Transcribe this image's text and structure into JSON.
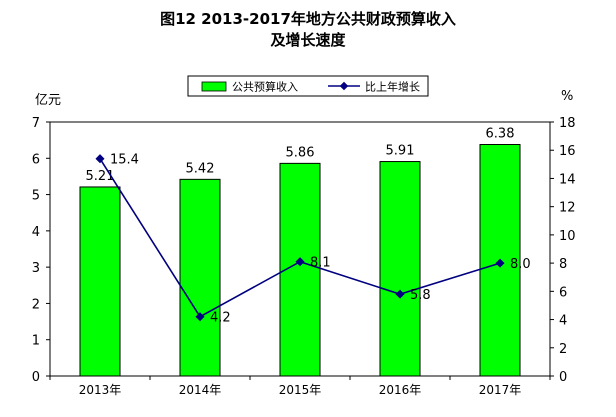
{
  "chart_data": {
    "type": "bar+line",
    "title_line1": "图12  2013-2017年地方公共财政预算收入",
    "title_line2": "及增长速度",
    "categories": [
      "2013年",
      "2014年",
      "2015年",
      "2016年",
      "2017年"
    ],
    "series": [
      {
        "name": "公共预算收入",
        "kind": "bar",
        "axis": "left",
        "color": "#00ff00",
        "values": [
          5.21,
          5.42,
          5.86,
          5.91,
          6.38
        ],
        "labels": [
          "5.21",
          "5.42",
          "5.86",
          "5.91",
          "6.38"
        ]
      },
      {
        "name": "比上年增长",
        "kind": "line",
        "axis": "right",
        "color": "#000080",
        "values": [
          15.4,
          4.2,
          8.1,
          5.8,
          8.0
        ],
        "labels": [
          "15.4",
          "4.2",
          "8.1",
          "5.8",
          "8.0"
        ]
      }
    ],
    "y_left": {
      "unit": "亿元",
      "ylim": [
        0,
        7
      ],
      "ticks": [
        0,
        1,
        2,
        3,
        4,
        5,
        6,
        7
      ]
    },
    "y_right": {
      "unit": "%",
      "ylim": [
        0,
        18
      ],
      "ticks": [
        0,
        2,
        4,
        6,
        8,
        10,
        12,
        14,
        16,
        18
      ]
    },
    "legend": "top-center",
    "grid": false
  }
}
